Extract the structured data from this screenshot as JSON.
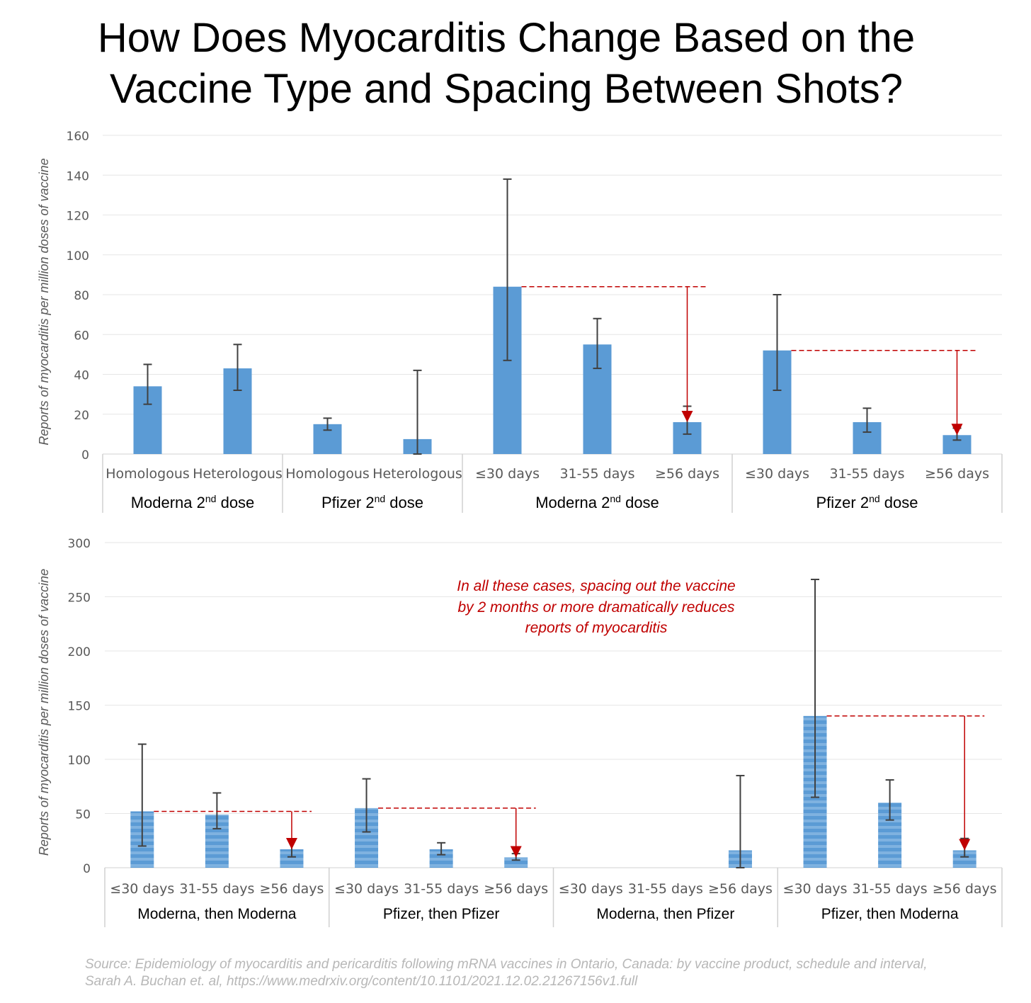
{
  "title": [
    "How Does Myocarditis Change Based on the",
    "Vaccine Type and Spacing Between Shots?"
  ],
  "source": [
    "Source: Epidemiology of myocarditis and pericarditis following mRNA vaccines in Ontario, Canada: by vaccine product, schedule and interval,",
    "Sarah A. Buchan et. al, https://www.medrxiv.org/content/10.1101/2021.12.02.21267156v1.full"
  ],
  "annotation": [
    "In all these cases, spacing out the vaccine",
    "by 2 months or more dramatically reduces",
    "reports of myocarditis"
  ],
  "colors": {
    "bar": "#5b9bd5",
    "error": "#404040",
    "accent": "#c00000",
    "grid": "#e6e6e6",
    "axis_text": "#595959"
  },
  "chart_data": [
    {
      "type": "bar",
      "ylabel": "Reports of myocarditis per million doses of vaccine",
      "ylim": [
        0,
        160
      ],
      "yticks": [
        0,
        20,
        40,
        60,
        80,
        100,
        120,
        140,
        160
      ],
      "grid": true,
      "groups": [
        {
          "label": "Moderna 2",
          "sup": "nd",
          "suffix": " dose",
          "categories": [
            "Homologous",
            "Heterologous"
          ],
          "values": [
            34,
            43
          ],
          "error_low": [
            25,
            32
          ],
          "error_high": [
            45,
            55
          ]
        },
        {
          "label": "Pfizer 2",
          "sup": "nd",
          "suffix": " dose",
          "categories": [
            "Homologous",
            "Heterologous"
          ],
          "values": [
            15,
            7.5
          ],
          "error_low": [
            12,
            0
          ],
          "error_high": [
            18,
            42
          ]
        },
        {
          "label": "Moderna 2",
          "sup": "nd",
          "suffix": " dose",
          "categories": [
            "≤30 days",
            "31-55 days",
            "≥56 days"
          ],
          "values": [
            84,
            55,
            16
          ],
          "error_low": [
            47,
            43,
            10
          ],
          "error_high": [
            138,
            68,
            24
          ]
        },
        {
          "label": "Pfizer 2",
          "sup": "nd",
          "suffix": " dose",
          "categories": [
            "≤30 days",
            "31-55 days",
            "≥56 days"
          ],
          "values": [
            52,
            16,
            9.5
          ],
          "error_low": [
            32,
            11,
            7
          ],
          "error_high": [
            80,
            23,
            13
          ]
        }
      ]
    },
    {
      "type": "bar",
      "ylabel": "Reports of myocarditis per million doses of vaccine",
      "ylim": [
        0,
        300
      ],
      "yticks": [
        0,
        50,
        100,
        150,
        200,
        250,
        300
      ],
      "grid": true,
      "groups": [
        {
          "label": "Moderna, then Moderna",
          "categories": [
            "≤30 days",
            "31-55 days",
            "≥56 days"
          ],
          "values": [
            52,
            49,
            17
          ],
          "error_low": [
            20,
            36,
            10
          ],
          "error_high": [
            114,
            69,
            26
          ]
        },
        {
          "label": "Pfizer, then Pfizer",
          "categories": [
            "≤30 days",
            "31-55 days",
            "≥56 days"
          ],
          "values": [
            55,
            17,
            9.5
          ],
          "error_low": [
            33,
            12,
            7
          ],
          "error_high": [
            82,
            23,
            13
          ]
        },
        {
          "label": "Moderna, then Pfizer",
          "categories": [
            "≤30 days",
            "31-55 days",
            "≥56 days"
          ],
          "values": [
            0,
            0,
            16
          ],
          "error_low": [
            null,
            null,
            0
          ],
          "error_high": [
            null,
            null,
            85
          ]
        },
        {
          "label": "Pfizer, then Moderna",
          "categories": [
            "≤30 days",
            "31-55 days",
            "≥56 days"
          ],
          "values": [
            140,
            60,
            16
          ],
          "error_low": [
            65,
            44,
            10
          ],
          "error_high": [
            266,
            81,
            27
          ]
        }
      ]
    }
  ]
}
